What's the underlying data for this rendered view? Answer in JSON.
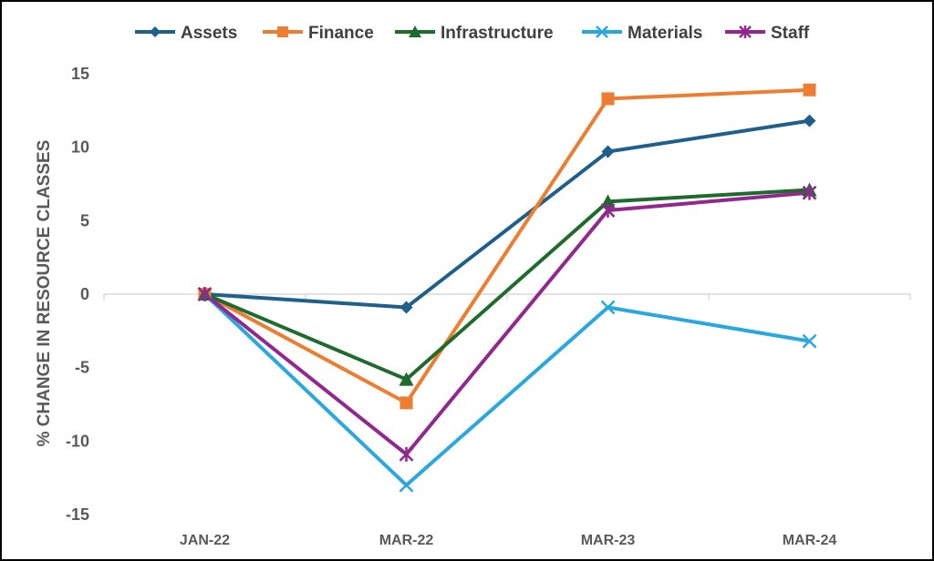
{
  "chart_data": {
    "type": "line",
    "title": "",
    "xlabel": "",
    "ylabel": "% CHANGE IN RESOURCE CLASSES",
    "categories": [
      "JAN-22",
      "MAR-22",
      "MAR-23",
      "MAR-24"
    ],
    "ylim": [
      -15,
      15
    ],
    "yticks": [
      15,
      10,
      5,
      0,
      -5,
      -10,
      -15
    ],
    "ytick_labels": [
      "15",
      "10",
      "5",
      "0",
      "-5",
      "-10",
      "-15"
    ],
    "grid": false,
    "legend_position": "top",
    "series": [
      {
        "name": "Assets",
        "values": [
          0,
          -0.9,
          9.7,
          11.8
        ],
        "color": "#1f5f8b",
        "marker": "diamond"
      },
      {
        "name": "Finance",
        "values": [
          0,
          -7.4,
          13.3,
          13.9
        ],
        "color": "#ed7d31",
        "marker": "square"
      },
      {
        "name": "Infrastructure",
        "values": [
          0,
          -5.8,
          6.3,
          7.1
        ],
        "color": "#1e6b2e",
        "marker": "triangle"
      },
      {
        "name": "Materials",
        "values": [
          0,
          -13.0,
          -0.9,
          -3.2
        ],
        "color": "#29a8e0",
        "marker": "x"
      },
      {
        "name": "Staff",
        "values": [
          0,
          -10.9,
          5.7,
          6.9
        ],
        "color": "#92278f",
        "marker": "star"
      }
    ]
  }
}
